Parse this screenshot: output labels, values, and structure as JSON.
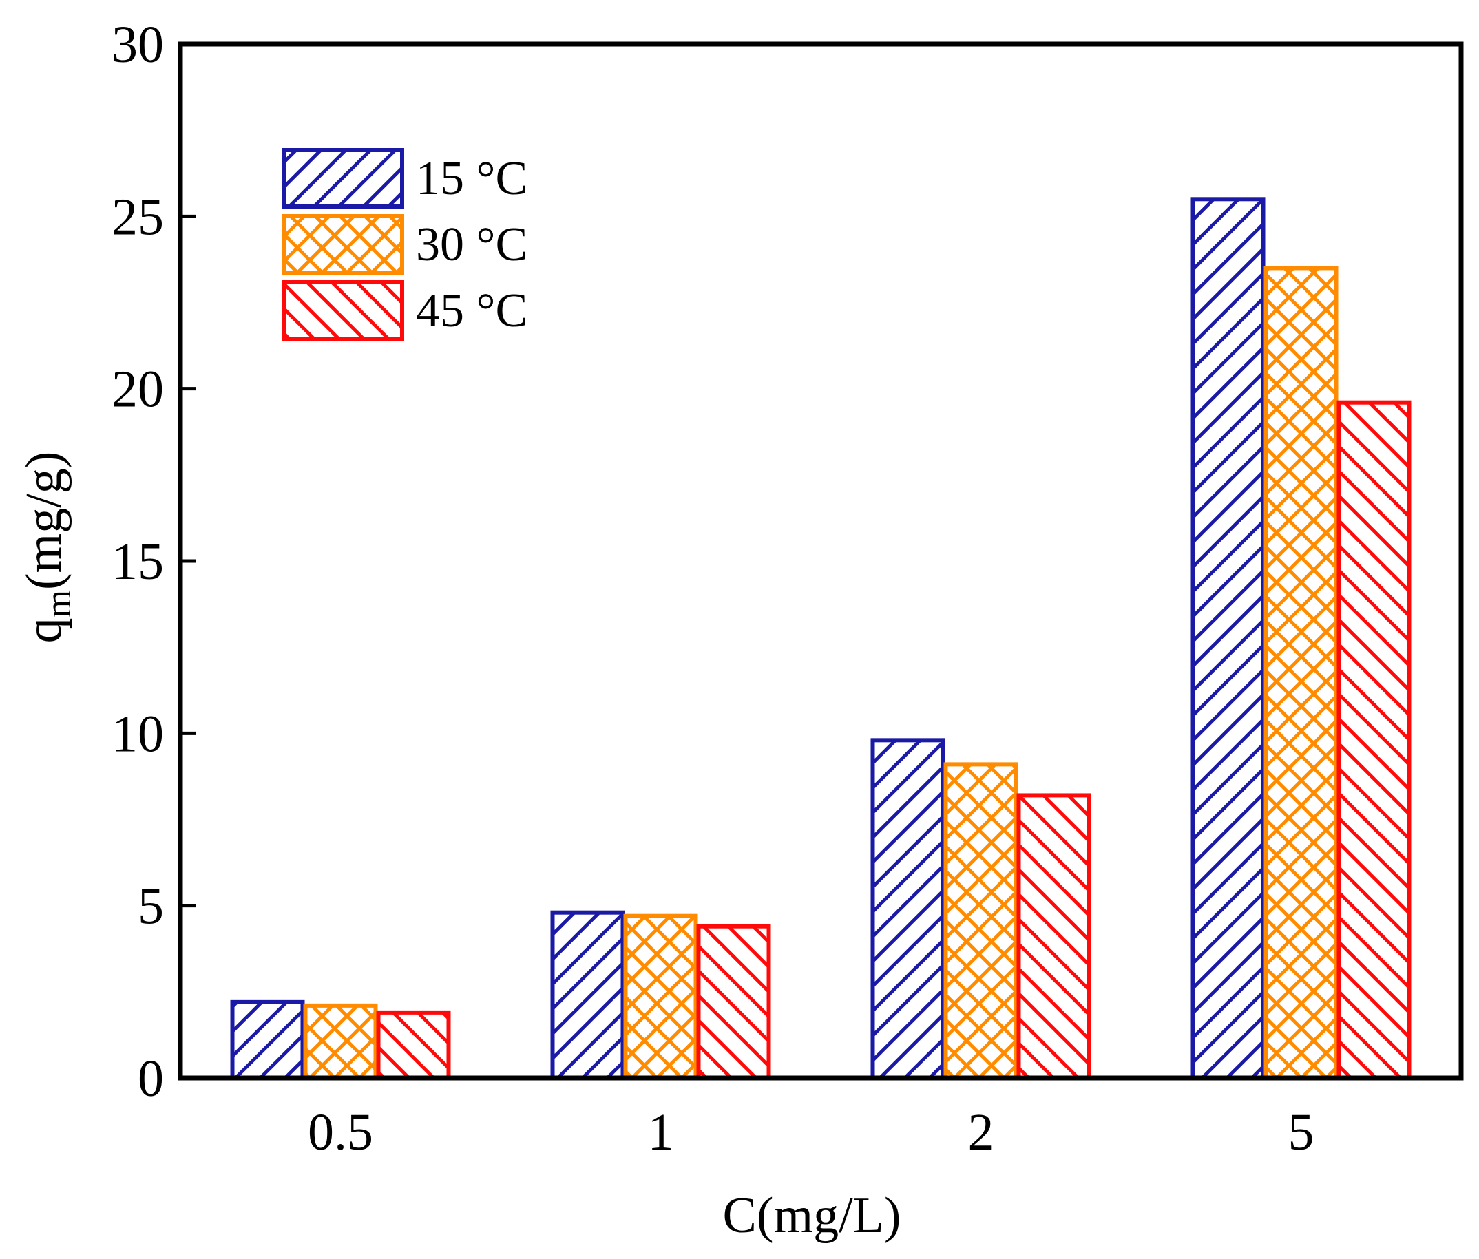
{
  "chart_data": {
    "type": "bar",
    "title": "",
    "xlabel": "C(mg/L)",
    "ylabel": {
      "main": "q",
      "subscript": "m",
      "unit": "(mg/g)"
    },
    "categories": [
      "0.5",
      "1",
      "2",
      "5"
    ],
    "ylim": [
      0,
      30
    ],
    "yticks": [
      "0",
      "5",
      "10",
      "15",
      "20",
      "25",
      "30"
    ],
    "grid": false,
    "legend_position": "top-left",
    "series": [
      {
        "name": "15 °C",
        "values": [
          2.2,
          4.8,
          9.8,
          25.5
        ],
        "color": "#1a1aa6",
        "pattern": "forward-diagonal"
      },
      {
        "name": "30 °C",
        "values": [
          2.1,
          4.7,
          9.1,
          23.5
        ],
        "color": "#ff8c00",
        "pattern": "crosshatch"
      },
      {
        "name": "45 °C",
        "values": [
          1.9,
          4.4,
          8.2,
          19.6
        ],
        "color": "#ff0a0a",
        "pattern": "backward-diagonal"
      }
    ]
  }
}
